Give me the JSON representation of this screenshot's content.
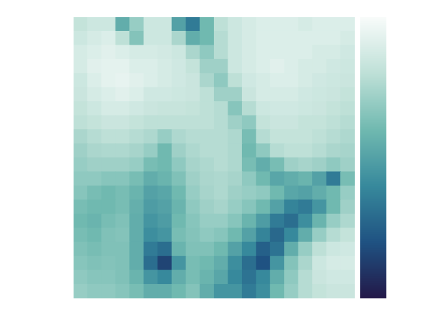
{
  "chart_data": {
    "type": "heatmap",
    "tick_labels": false,
    "colorbar": {
      "range": [
        0,
        1
      ]
    },
    "cells": [
      [
        0.82,
        0.85,
        0.85,
        0.55,
        0.7,
        0.85,
        0.85,
        0.5,
        0.35,
        0.6,
        0.8,
        0.85,
        0.88,
        0.9,
        0.9,
        0.9,
        0.88,
        0.9,
        0.9,
        0.9
      ],
      [
        0.85,
        0.88,
        0.9,
        0.8,
        0.65,
        0.85,
        0.85,
        0.75,
        0.55,
        0.6,
        0.78,
        0.85,
        0.88,
        0.9,
        0.9,
        0.9,
        0.9,
        0.9,
        0.9,
        0.88
      ],
      [
        0.88,
        0.9,
        0.92,
        0.9,
        0.88,
        0.88,
        0.87,
        0.85,
        0.75,
        0.68,
        0.78,
        0.85,
        0.88,
        0.9,
        0.9,
        0.9,
        0.9,
        0.88,
        0.88,
        0.86
      ],
      [
        0.88,
        0.92,
        0.93,
        0.93,
        0.9,
        0.9,
        0.88,
        0.86,
        0.82,
        0.72,
        0.72,
        0.85,
        0.88,
        0.9,
        0.92,
        0.9,
        0.88,
        0.88,
        0.86,
        0.85
      ],
      [
        0.85,
        0.9,
        0.93,
        0.94,
        0.92,
        0.9,
        0.88,
        0.86,
        0.84,
        0.75,
        0.68,
        0.8,
        0.86,
        0.88,
        0.9,
        0.9,
        0.88,
        0.86,
        0.85,
        0.84
      ],
      [
        0.84,
        0.88,
        0.9,
        0.92,
        0.9,
        0.86,
        0.86,
        0.85,
        0.84,
        0.8,
        0.72,
        0.72,
        0.84,
        0.88,
        0.88,
        0.88,
        0.86,
        0.85,
        0.84,
        0.82
      ],
      [
        0.82,
        0.85,
        0.88,
        0.88,
        0.86,
        0.84,
        0.83,
        0.83,
        0.82,
        0.8,
        0.78,
        0.66,
        0.78,
        0.85,
        0.86,
        0.86,
        0.85,
        0.84,
        0.82,
        0.8
      ],
      [
        0.8,
        0.82,
        0.84,
        0.84,
        0.82,
        0.8,
        0.8,
        0.8,
        0.8,
        0.8,
        0.78,
        0.72,
        0.68,
        0.82,
        0.84,
        0.84,
        0.82,
        0.82,
        0.8,
        0.78
      ],
      [
        0.75,
        0.78,
        0.8,
        0.8,
        0.78,
        0.76,
        0.7,
        0.76,
        0.78,
        0.78,
        0.78,
        0.76,
        0.62,
        0.78,
        0.82,
        0.82,
        0.82,
        0.8,
        0.78,
        0.76
      ],
      [
        0.72,
        0.75,
        0.76,
        0.76,
        0.74,
        0.7,
        0.6,
        0.72,
        0.76,
        0.78,
        0.78,
        0.76,
        0.6,
        0.68,
        0.78,
        0.8,
        0.8,
        0.78,
        0.75,
        0.74
      ],
      [
        0.7,
        0.72,
        0.72,
        0.72,
        0.7,
        0.62,
        0.6,
        0.68,
        0.74,
        0.76,
        0.78,
        0.76,
        0.62,
        0.55,
        0.62,
        0.72,
        0.74,
        0.72,
        0.68,
        0.72
      ],
      [
        0.68,
        0.68,
        0.66,
        0.66,
        0.62,
        0.55,
        0.58,
        0.64,
        0.72,
        0.75,
        0.76,
        0.74,
        0.68,
        0.6,
        0.52,
        0.55,
        0.58,
        0.5,
        0.35,
        0.62
      ],
      [
        0.66,
        0.62,
        0.6,
        0.62,
        0.58,
        0.5,
        0.52,
        0.6,
        0.7,
        0.74,
        0.76,
        0.72,
        0.7,
        0.68,
        0.6,
        0.52,
        0.5,
        0.55,
        0.6,
        0.7
      ],
      [
        0.62,
        0.6,
        0.6,
        0.62,
        0.56,
        0.48,
        0.5,
        0.58,
        0.68,
        0.72,
        0.74,
        0.7,
        0.66,
        0.6,
        0.5,
        0.38,
        0.35,
        0.45,
        0.6,
        0.72
      ],
      [
        0.6,
        0.58,
        0.62,
        0.64,
        0.55,
        0.45,
        0.48,
        0.6,
        0.66,
        0.7,
        0.7,
        0.66,
        0.58,
        0.48,
        0.35,
        0.3,
        0.42,
        0.58,
        0.7,
        0.76
      ],
      [
        0.62,
        0.6,
        0.64,
        0.65,
        0.55,
        0.42,
        0.45,
        0.62,
        0.65,
        0.68,
        0.66,
        0.6,
        0.5,
        0.38,
        0.28,
        0.4,
        0.55,
        0.7,
        0.78,
        0.82
      ],
      [
        0.64,
        0.62,
        0.64,
        0.64,
        0.55,
        0.35,
        0.3,
        0.58,
        0.64,
        0.64,
        0.6,
        0.5,
        0.4,
        0.25,
        0.32,
        0.55,
        0.7,
        0.8,
        0.85,
        0.86
      ],
      [
        0.66,
        0.64,
        0.65,
        0.64,
        0.55,
        0.3,
        0.15,
        0.45,
        0.62,
        0.6,
        0.55,
        0.42,
        0.3,
        0.2,
        0.45,
        0.65,
        0.75,
        0.85,
        0.88,
        0.88
      ],
      [
        0.68,
        0.66,
        0.66,
        0.64,
        0.58,
        0.45,
        0.4,
        0.55,
        0.62,
        0.58,
        0.52,
        0.4,
        0.32,
        0.4,
        0.55,
        0.68,
        0.78,
        0.84,
        0.86,
        0.86
      ],
      [
        0.7,
        0.68,
        0.68,
        0.66,
        0.62,
        0.55,
        0.55,
        0.6,
        0.65,
        0.55,
        0.45,
        0.45,
        0.35,
        0.42,
        0.6,
        0.7,
        0.78,
        0.82,
        0.84,
        0.84
      ]
    ]
  }
}
